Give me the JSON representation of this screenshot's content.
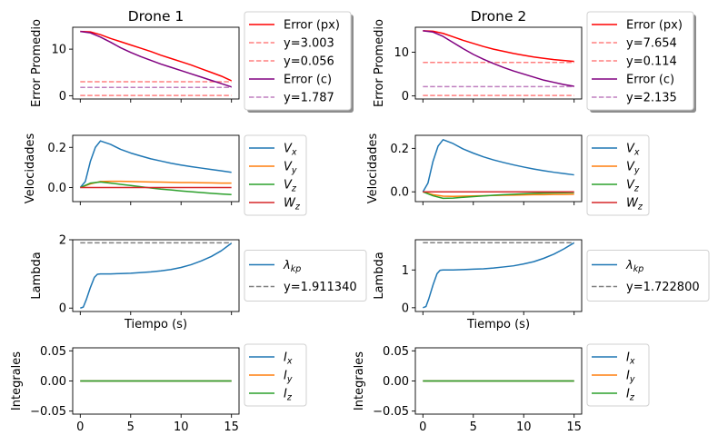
{
  "chart_data": [
    {
      "type": "line",
      "title": "Drone 1",
      "ylabel": "Error Promedio",
      "xlim": [
        -0.75,
        15.75
      ],
      "ylim": [
        -0.7,
        14.7
      ],
      "yticks": [
        0,
        10
      ],
      "xtick_positions": [
        0,
        5,
        10,
        15
      ],
      "show_x_ticklabels": false,
      "legend": {
        "placement": "outside-right",
        "shadow": true
      },
      "series": [
        {
          "name": "Error (px)",
          "color": "#ff0000",
          "style": "solid",
          "x": [
            0,
            1,
            2,
            3,
            4,
            5,
            6,
            7,
            8,
            9,
            10,
            11,
            12,
            13,
            14,
            15
          ],
          "y": [
            13.8,
            13.7,
            13.1,
            12.3,
            11.6,
            10.9,
            10.2,
            9.5,
            8.7,
            8.0,
            7.3,
            6.6,
            5.8,
            5.0,
            4.2,
            3.2
          ]
        },
        {
          "name": "y=3.003",
          "color": "#ff0000",
          "style": "dashed",
          "alpha": 0.5,
          "hline": 3.003
        },
        {
          "name": "y=0.056",
          "color": "#ff0000",
          "style": "dashed",
          "alpha": 0.5,
          "hline": 0.056
        },
        {
          "name": "Error (c)",
          "color": "#800080",
          "style": "solid",
          "x": [
            0,
            1,
            2,
            3,
            4,
            5,
            6,
            7,
            8,
            9,
            10,
            11,
            12,
            13,
            14,
            15
          ],
          "y": [
            13.8,
            13.5,
            12.6,
            11.5,
            10.3,
            9.3,
            8.4,
            7.6,
            6.8,
            6.1,
            5.4,
            4.7,
            4.0,
            3.3,
            2.6,
            1.9
          ]
        },
        {
          "name": "y=1.787",
          "color": "#800080",
          "style": "dashed",
          "alpha": 0.5,
          "hline": 1.787
        }
      ]
    },
    {
      "type": "line",
      "title": "Drone 2",
      "ylabel": "Error Promedio",
      "xlim": [
        -0.75,
        15.75
      ],
      "ylim": [
        -0.7,
        15.7
      ],
      "yticks": [
        0,
        10
      ],
      "xtick_positions": [
        0,
        5,
        10,
        15
      ],
      "show_x_ticklabels": false,
      "legend": {
        "placement": "outside-right",
        "shadow": true
      },
      "series": [
        {
          "name": "Error (px)",
          "color": "#ff0000",
          "style": "solid",
          "x": [
            0,
            1,
            2,
            3,
            4,
            5,
            6,
            7,
            8,
            9,
            10,
            11,
            12,
            13,
            14,
            15
          ],
          "y": [
            14.9,
            14.8,
            14.3,
            13.5,
            12.7,
            12.0,
            11.3,
            10.7,
            10.2,
            9.7,
            9.3,
            8.9,
            8.6,
            8.3,
            8.1,
            7.9
          ]
        },
        {
          "name": "y=7.654",
          "color": "#ff0000",
          "style": "dashed",
          "alpha": 0.5,
          "hline": 7.654
        },
        {
          "name": "y=0.114",
          "color": "#ff0000",
          "style": "dashed",
          "alpha": 0.5,
          "hline": 0.114
        },
        {
          "name": "Error (c)",
          "color": "#800080",
          "style": "solid",
          "x": [
            0,
            1,
            2,
            3,
            4,
            5,
            6,
            7,
            8,
            9,
            10,
            11,
            12,
            13,
            14,
            15
          ],
          "y": [
            14.9,
            14.6,
            13.6,
            12.2,
            10.8,
            9.5,
            8.4,
            7.4,
            6.5,
            5.7,
            5.0,
            4.3,
            3.6,
            3.1,
            2.6,
            2.2
          ]
        },
        {
          "name": "y=2.135",
          "color": "#800080",
          "style": "dashed",
          "alpha": 0.5,
          "hline": 2.135
        }
      ]
    },
    {
      "type": "line",
      "ylabel": "Velocidades",
      "xlim": [
        -0.75,
        15.75
      ],
      "ylim": [
        -0.07,
        0.26
      ],
      "yticks": [
        0.0,
        0.2
      ],
      "ytick_labels": [
        "0.0",
        "0.2"
      ],
      "xtick_positions": [
        0,
        5,
        10,
        15
      ],
      "show_x_ticklabels": false,
      "legend": {
        "placement": "outside-right",
        "shadow": false
      },
      "series": [
        {
          "name": "V_x",
          "color": "#1f77b4",
          "x": [
            0,
            0.5,
            1,
            1.5,
            2,
            3,
            4,
            5,
            6,
            7,
            8,
            9,
            10,
            11,
            12,
            13,
            14,
            15
          ],
          "y": [
            0,
            0.03,
            0.13,
            0.2,
            0.232,
            0.215,
            0.19,
            0.172,
            0.157,
            0.143,
            0.132,
            0.121,
            0.112,
            0.104,
            0.097,
            0.09,
            0.083,
            0.076
          ]
        },
        {
          "name": "V_y",
          "color": "#ff7f0e",
          "x": [
            0,
            1,
            2,
            3,
            4,
            5,
            6,
            7,
            8,
            9,
            10,
            11,
            12,
            13,
            14,
            15
          ],
          "y": [
            0,
            0.018,
            0.03,
            0.031,
            0.031,
            0.03,
            0.029,
            0.028,
            0.027,
            0.026,
            0.025,
            0.025,
            0.024,
            0.023,
            0.022,
            0.022
          ]
        },
        {
          "name": "V_z",
          "color": "#2ca02c",
          "x": [
            0,
            1,
            2,
            3,
            4,
            5,
            6,
            7,
            8,
            9,
            10,
            11,
            12,
            13,
            14,
            15
          ],
          "y": [
            0,
            0.022,
            0.028,
            0.022,
            0.016,
            0.01,
            0.004,
            -0.002,
            -0.008,
            -0.012,
            -0.017,
            -0.021,
            -0.025,
            -0.029,
            -0.032,
            -0.035
          ]
        },
        {
          "name": "W_z",
          "color": "#d62728",
          "x": [
            0,
            15
          ],
          "y": [
            0,
            0
          ]
        }
      ]
    },
    {
      "type": "line",
      "ylabel": "Velocidades",
      "xlim": [
        -0.75,
        15.75
      ],
      "ylim": [
        -0.045,
        0.26
      ],
      "yticks": [
        0.0,
        0.2
      ],
      "ytick_labels": [
        "0.0",
        "0.2"
      ],
      "xtick_positions": [
        0,
        5,
        10,
        15
      ],
      "show_x_ticklabels": false,
      "legend": {
        "placement": "outside-right",
        "shadow": false
      },
      "series": [
        {
          "name": "V_x",
          "color": "#1f77b4",
          "x": [
            0,
            0.5,
            1,
            1.5,
            2,
            3,
            4,
            5,
            6,
            7,
            8,
            9,
            10,
            11,
            12,
            13,
            14,
            15
          ],
          "y": [
            0,
            0.04,
            0.14,
            0.21,
            0.24,
            0.222,
            0.197,
            0.178,
            0.161,
            0.147,
            0.135,
            0.124,
            0.114,
            0.105,
            0.097,
            0.09,
            0.084,
            0.078
          ]
        },
        {
          "name": "V_y",
          "color": "#ff7f0e",
          "x": [
            0,
            1,
            2,
            3,
            4,
            5,
            6,
            7,
            8,
            9,
            10,
            11,
            12,
            13,
            14,
            15
          ],
          "y": [
            0,
            -0.013,
            -0.02,
            -0.021,
            -0.02,
            -0.019,
            -0.018,
            -0.017,
            -0.016,
            -0.015,
            -0.014,
            -0.013,
            -0.013,
            -0.012,
            -0.012,
            -0.011
          ]
        },
        {
          "name": "V_z",
          "color": "#2ca02c",
          "x": [
            0,
            1,
            2,
            3,
            4,
            5,
            6,
            7,
            8,
            9,
            10,
            11,
            12,
            13,
            14,
            15
          ],
          "y": [
            0,
            -0.018,
            -0.03,
            -0.029,
            -0.025,
            -0.022,
            -0.019,
            -0.016,
            -0.013,
            -0.011,
            -0.009,
            -0.007,
            -0.006,
            -0.005,
            -0.004,
            -0.003
          ]
        },
        {
          "name": "W_z",
          "color": "#d62728",
          "x": [
            0,
            15
          ],
          "y": [
            0,
            0
          ]
        }
      ]
    },
    {
      "type": "line",
      "ylabel": "Lambda",
      "xlabel": "Tiempo (s)",
      "xlim": [
        -0.75,
        15.75
      ],
      "ylim": [
        -0.1,
        2.0
      ],
      "yticks": [
        0,
        2
      ],
      "xtick_positions": [
        0,
        5,
        10,
        15
      ],
      "show_x_ticklabels": false,
      "legend": {
        "placement": "outside-right",
        "shadow": false
      },
      "series": [
        {
          "name": "λ_kp",
          "color": "#1f77b4",
          "x": [
            0,
            0.3,
            0.6,
            1,
            1.4,
            1.7,
            2,
            3,
            4,
            5,
            6,
            7,
            8,
            9,
            10,
            11,
            12,
            13,
            14,
            15
          ],
          "y": [
            0,
            0.03,
            0.25,
            0.6,
            0.9,
            0.99,
            1.0,
            1.0,
            1.01,
            1.02,
            1.04,
            1.06,
            1.09,
            1.13,
            1.19,
            1.27,
            1.38,
            1.51,
            1.68,
            1.9
          ]
        },
        {
          "name": "y=1.911340",
          "color": "#808080",
          "style": "dashed",
          "hline": 1.91134
        }
      ]
    },
    {
      "type": "line",
      "ylabel": "Lambda",
      "xlabel": "Tiempo (s)",
      "xlim": [
        -0.75,
        15.75
      ],
      "ylim": [
        -0.1,
        1.8
      ],
      "yticks": [
        0,
        1
      ],
      "xtick_positions": [
        0,
        5,
        10,
        15
      ],
      "show_x_ticklabels": false,
      "legend": {
        "placement": "outside-right",
        "shadow": false
      },
      "series": [
        {
          "name": "λ_kp",
          "color": "#1f77b4",
          "x": [
            0,
            0.3,
            0.6,
            1,
            1.4,
            1.7,
            2,
            3,
            4,
            5,
            6,
            7,
            8,
            9,
            10,
            11,
            12,
            13,
            14,
            15
          ],
          "y": [
            0,
            0.03,
            0.25,
            0.6,
            0.9,
            0.99,
            1.0,
            1.0,
            1.01,
            1.02,
            1.03,
            1.05,
            1.08,
            1.11,
            1.16,
            1.22,
            1.31,
            1.42,
            1.56,
            1.72
          ]
        },
        {
          "name": "y=1.722800",
          "color": "#808080",
          "style": "dashed",
          "hline": 1.7228
        }
      ]
    },
    {
      "type": "line",
      "ylabel": "Integrales",
      "xlim": [
        -0.75,
        15.75
      ],
      "ylim": [
        -0.055,
        0.055
      ],
      "yticks": [
        -0.05,
        0.0,
        0.05
      ],
      "ytick_labels": [
        "−0.05",
        "0.00",
        "0.05"
      ],
      "xtick_positions": [
        0,
        5,
        10,
        15
      ],
      "xticks": [
        "0",
        "5",
        "10",
        "15"
      ],
      "show_x_ticklabels": true,
      "legend": {
        "placement": "outside-right",
        "shadow": false
      },
      "series": [
        {
          "name": "I_x",
          "color": "#1f77b4",
          "x": [
            0,
            15
          ],
          "y": [
            0,
            0
          ]
        },
        {
          "name": "I_y",
          "color": "#ff7f0e",
          "x": [
            0,
            15
          ],
          "y": [
            0,
            0
          ]
        },
        {
          "name": "I_z",
          "color": "#2ca02c",
          "x": [
            0,
            15
          ],
          "y": [
            0,
            0
          ]
        }
      ]
    },
    {
      "type": "line",
      "ylabel": "Integrales",
      "xlim": [
        -0.75,
        15.75
      ],
      "ylim": [
        -0.055,
        0.055
      ],
      "yticks": [
        -0.05,
        0.0,
        0.05
      ],
      "ytick_labels": [
        "−0.05",
        "0.00",
        "0.05"
      ],
      "xtick_positions": [
        0,
        5,
        10,
        15
      ],
      "xticks": [
        "0",
        "5",
        "10",
        "15"
      ],
      "show_x_ticklabels": true,
      "legend": {
        "placement": "outside-right",
        "shadow": false
      },
      "series": [
        {
          "name": "I_x",
          "color": "#1f77b4",
          "x": [
            0,
            15
          ],
          "y": [
            0,
            0
          ]
        },
        {
          "name": "I_y",
          "color": "#ff7f0e",
          "x": [
            0,
            15
          ],
          "y": [
            0,
            0
          ]
        },
        {
          "name": "I_z",
          "color": "#2ca02c",
          "x": [
            0,
            15
          ],
          "y": [
            0,
            0
          ]
        }
      ]
    }
  ]
}
